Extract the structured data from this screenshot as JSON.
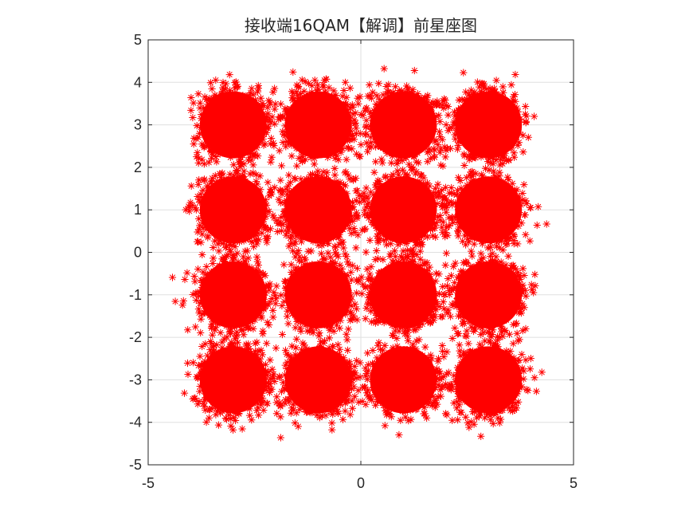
{
  "chart_data": {
    "type": "scatter",
    "title": "接收端16QAM【解调】前星座图",
    "xlabel": "",
    "ylabel": "",
    "xlim": [
      -5,
      5
    ],
    "ylim": [
      -5,
      5
    ],
    "x_ticks": [
      "-5",
      "0",
      "5"
    ],
    "y_ticks": [
      "5",
      "4",
      "3",
      "2",
      "1",
      "0",
      "-1",
      "-2",
      "-3",
      "-4",
      "-5"
    ],
    "grid": true,
    "marker": "*",
    "color": "#ff0000",
    "cluster_spread": 0.38,
    "points_per_cluster": 900,
    "series": [
      {
        "centers": [
          [
            -3,
            3
          ],
          [
            -1,
            3
          ],
          [
            1,
            3
          ],
          [
            3,
            3
          ],
          [
            -3,
            1
          ],
          [
            -1,
            1
          ],
          [
            1,
            1
          ],
          [
            3,
            1
          ],
          [
            -3,
            -1
          ],
          [
            -1,
            -1
          ],
          [
            1,
            -1
          ],
          [
            3,
            -1
          ],
          [
            -3,
            -3
          ],
          [
            -1,
            -3
          ],
          [
            1,
            -3
          ],
          [
            3,
            -3
          ]
        ]
      }
    ]
  }
}
